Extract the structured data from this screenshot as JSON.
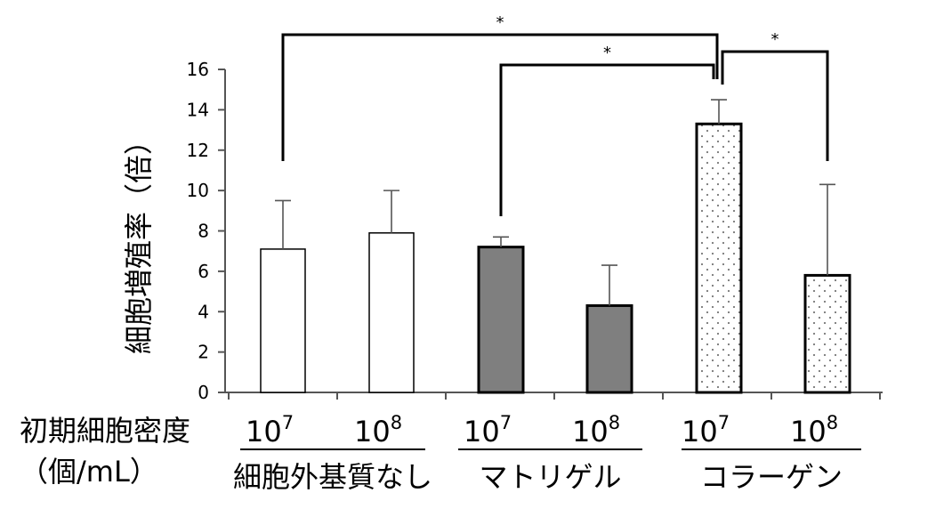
{
  "chart_data": {
    "type": "bar",
    "ylabel": "細胞増殖率（倍）",
    "ylim": [
      0,
      16
    ],
    "yticks": [
      "0",
      "2",
      "4",
      "6",
      "8",
      "10",
      "12",
      "14",
      "16"
    ],
    "xaxis_title_line1": "初期細胞密度",
    "xaxis_title_line2": "（個/mL）",
    "categories": [
      {
        "base": "10",
        "exp": "7",
        "group": "細胞外基質なし"
      },
      {
        "base": "10",
        "exp": "8",
        "group": "細胞外基質なし"
      },
      {
        "base": "10",
        "exp": "7",
        "group": "マトリゲル"
      },
      {
        "base": "10",
        "exp": "8",
        "group": "マトリゲル"
      },
      {
        "base": "10",
        "exp": "7",
        "group": "コラーゲン"
      },
      {
        "base": "10",
        "exp": "8",
        "group": "コラーゲン"
      }
    ],
    "groups": [
      "細胞外基質なし",
      "マトリゲル",
      "コラーゲン"
    ],
    "values": [
      7.1,
      7.9,
      7.2,
      4.3,
      13.3,
      5.8
    ],
    "error_upper": [
      9.5,
      10.0,
      7.7,
      6.3,
      14.5,
      10.3
    ],
    "group_styles": [
      {
        "group": "細胞外基質なし",
        "fill": "#ffffff",
        "stroke": "#000000"
      },
      {
        "group": "マトリゲル",
        "fill": "#7f7f7f",
        "stroke": "#000000"
      },
      {
        "group": "コラーゲン",
        "fill": "dotted",
        "stroke": "#000000"
      }
    ],
    "significance": [
      {
        "from": 0,
        "to": 4,
        "label": "*"
      },
      {
        "from": 2,
        "to": 4,
        "label": "*"
      },
      {
        "from": 4,
        "to": 5,
        "label": "*"
      }
    ]
  }
}
